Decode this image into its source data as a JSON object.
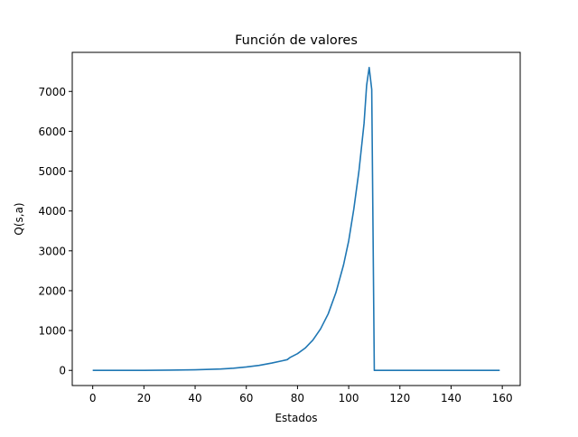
{
  "chart_data": {
    "type": "line",
    "title": "Función de valores",
    "xlabel": "Estados",
    "ylabel": "Q(s,a)",
    "xlim": [
      -8,
      167
    ],
    "ylim": [
      -380,
      7980
    ],
    "xticks": [
      0,
      20,
      40,
      60,
      80,
      100,
      120,
      140,
      160
    ],
    "yticks": [
      0,
      1000,
      2000,
      3000,
      4000,
      5000,
      6000,
      7000
    ],
    "grid": false,
    "legend": "none",
    "series": [
      {
        "color": "#1f77b4",
        "x": [
          0,
          10,
          20,
          30,
          40,
          50,
          55,
          60,
          65,
          70,
          74,
          76,
          77,
          80,
          83,
          86,
          89,
          92,
          95,
          98,
          100,
          102,
          104,
          106,
          107,
          108,
          109,
          110,
          112,
          120,
          130,
          140,
          150,
          159
        ],
        "y": [
          0,
          1,
          2,
          6,
          15,
          35,
          55,
          85,
          125,
          185,
          240,
          270,
          320,
          420,
          560,
          760,
          1040,
          1420,
          1950,
          2650,
          3250,
          4050,
          5000,
          6200,
          7150,
          7600,
          7050,
          0,
          0,
          0,
          0,
          0,
          0,
          0
        ]
      }
    ]
  }
}
